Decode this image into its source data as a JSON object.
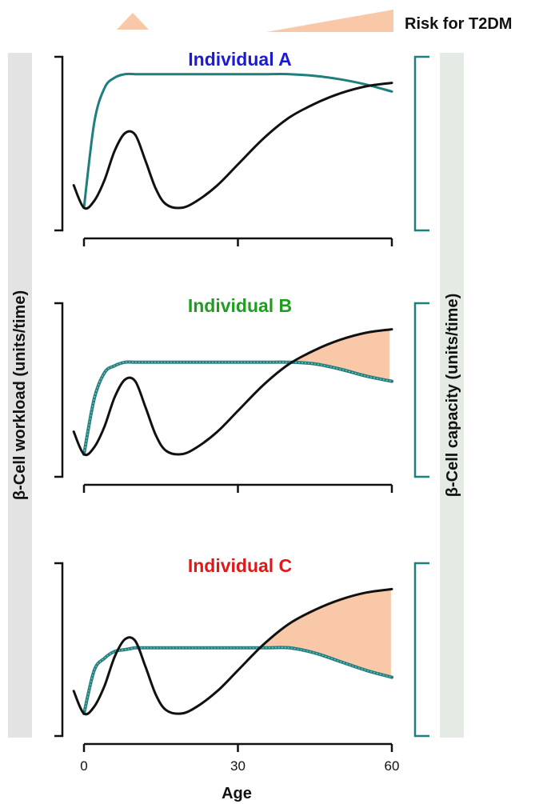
{
  "risk_label": "Risk for T2DM",
  "left_axis_label": "β-Cell workload (units/time)",
  "right_axis_label": "β-Cell capacity (units/time)",
  "x_axis_label": "Age",
  "colors": {
    "capacity": "#1f7f7c",
    "workload": "#111111",
    "risk_fill": "#f9c8a8",
    "left_band": "#e3e3e3",
    "right_band": "#e4ebe4"
  },
  "chart_data": [
    {
      "type": "line",
      "title": "Individual A",
      "title_color": "#1a1adb",
      "xlim": [
        0,
        60
      ],
      "xticks": [
        0,
        30,
        60
      ],
      "x": [
        -2,
        0,
        2,
        4,
        6,
        8,
        10,
        12,
        14,
        16,
        19,
        22,
        26,
        30,
        35,
        40,
        45,
        50,
        55,
        60
      ],
      "series": [
        {
          "key": "workload",
          "values": [
            0.26,
            0.13,
            0.17,
            0.29,
            0.46,
            0.56,
            0.55,
            0.4,
            0.24,
            0.15,
            0.13,
            0.17,
            0.26,
            0.38,
            0.53,
            0.65,
            0.73,
            0.79,
            0.83,
            0.85
          ]
        },
        {
          "key": "capacity",
          "values": [
            null,
            0.13,
            0.62,
            0.82,
            0.88,
            0.9,
            0.9,
            0.9,
            0.9,
            0.9,
            0.9,
            0.9,
            0.9,
            0.9,
            0.9,
            0.9,
            0.89,
            0.87,
            0.84,
            0.8
          ]
        }
      ],
      "risk_area": false
    },
    {
      "type": "line",
      "title": "Individual B",
      "title_color": "#1e9e1e",
      "xlim": [
        0,
        60
      ],
      "xticks": [
        0,
        30,
        60
      ],
      "x": [
        -2,
        0,
        2,
        4,
        6,
        8,
        10,
        12,
        14,
        16,
        19,
        22,
        26,
        30,
        35,
        40,
        45,
        50,
        55,
        60
      ],
      "series": [
        {
          "key": "workload",
          "values": [
            0.26,
            0.13,
            0.17,
            0.29,
            0.46,
            0.56,
            0.55,
            0.4,
            0.24,
            0.15,
            0.13,
            0.17,
            0.26,
            0.38,
            0.53,
            0.65,
            0.73,
            0.79,
            0.83,
            0.85
          ]
        },
        {
          "key": "capacity",
          "values": [
            null,
            0.13,
            0.45,
            0.6,
            0.64,
            0.66,
            0.66,
            0.66,
            0.66,
            0.66,
            0.66,
            0.66,
            0.66,
            0.66,
            0.66,
            0.66,
            0.65,
            0.62,
            0.58,
            0.55
          ]
        }
      ],
      "risk_area": true
    },
    {
      "type": "line",
      "title": "Individual C",
      "title_color": "#e01818",
      "xlim": [
        0,
        60
      ],
      "xticks": [
        0,
        30,
        60
      ],
      "x": [
        -2,
        0,
        2,
        4,
        6,
        8,
        10,
        12,
        14,
        16,
        19,
        22,
        26,
        30,
        35,
        40,
        45,
        50,
        55,
        60
      ],
      "series": [
        {
          "key": "workload",
          "values": [
            0.26,
            0.13,
            0.17,
            0.29,
            0.46,
            0.56,
            0.55,
            0.4,
            0.24,
            0.15,
            0.13,
            0.17,
            0.26,
            0.38,
            0.53,
            0.65,
            0.73,
            0.79,
            0.83,
            0.85
          ]
        },
        {
          "key": "capacity",
          "values": [
            null,
            0.13,
            0.38,
            0.45,
            0.49,
            0.5,
            0.51,
            0.51,
            0.51,
            0.51,
            0.51,
            0.51,
            0.51,
            0.51,
            0.51,
            0.51,
            0.48,
            0.43,
            0.38,
            0.34
          ]
        }
      ],
      "risk_area": true
    }
  ]
}
